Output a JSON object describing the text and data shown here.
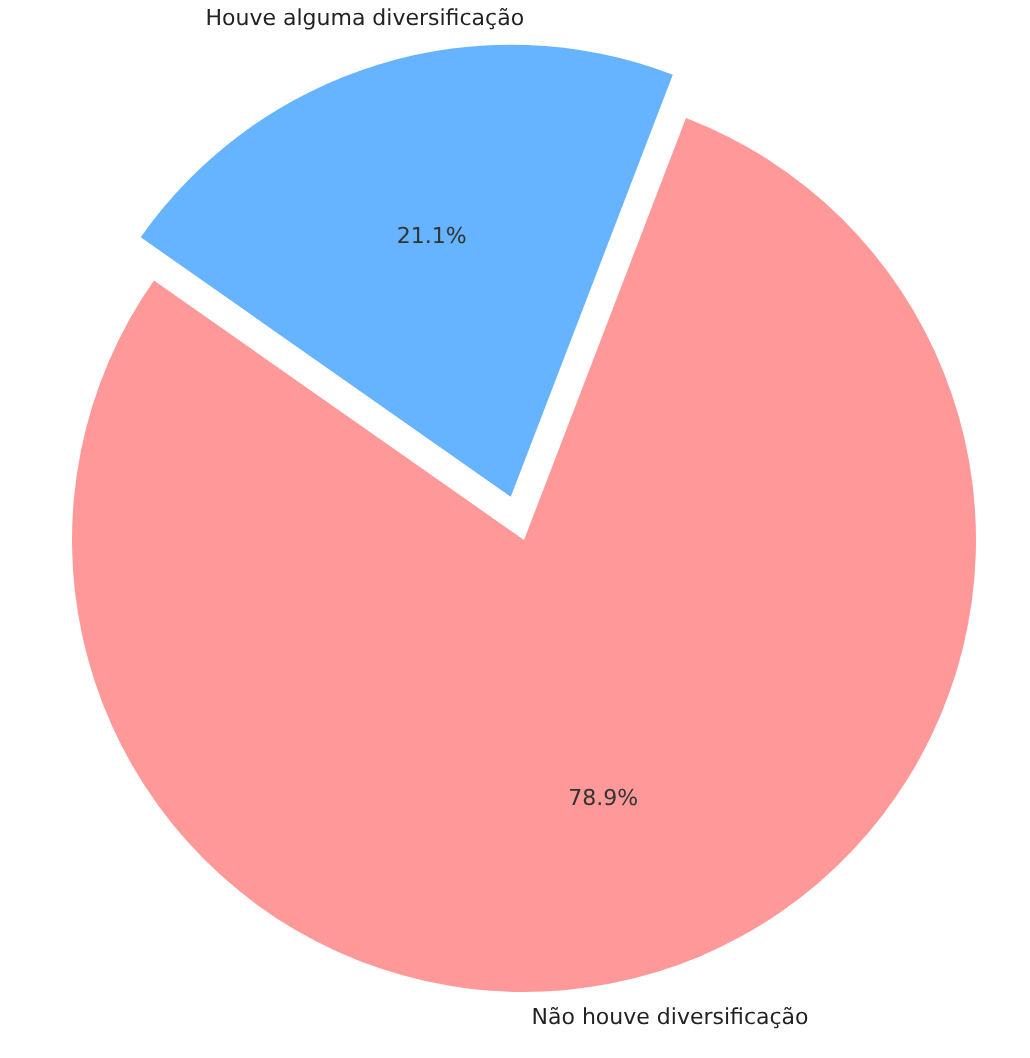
{
  "chart_data": {
    "type": "pie",
    "categories": [
      "Não houve diversificação",
      "Houve alguma diversificação"
    ],
    "values": [
      78.9,
      21.1
    ],
    "value_labels": [
      "78.9%",
      "21.1%"
    ],
    "colors": [
      "#ff9999",
      "#66b3ff"
    ]
  }
}
